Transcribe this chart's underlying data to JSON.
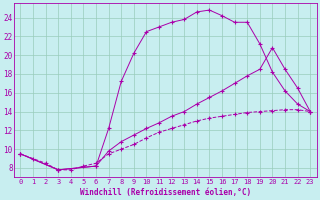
{
  "xlabel": "Windchill (Refroidissement éolien,°C)",
  "bg_color": "#c8eef0",
  "grid_color": "#99ccbb",
  "line_color": "#aa00aa",
  "xlim": [
    -0.5,
    23.5
  ],
  "ylim": [
    7.0,
    25.5
  ],
  "xticks": [
    0,
    1,
    2,
    3,
    4,
    5,
    6,
    7,
    8,
    9,
    10,
    11,
    12,
    13,
    14,
    15,
    16,
    17,
    18,
    19,
    20,
    21,
    22,
    23
  ],
  "yticks": [
    8,
    10,
    12,
    14,
    16,
    18,
    20,
    22,
    24
  ],
  "curve1_x": [
    0,
    1,
    2,
    3,
    4,
    5,
    6,
    7,
    8,
    9,
    10,
    11,
    12,
    13,
    14,
    15,
    16,
    17,
    18,
    19,
    20,
    21,
    22,
    23
  ],
  "curve1_y": [
    9.5,
    9.0,
    8.5,
    7.8,
    7.8,
    8.2,
    8.5,
    9.5,
    10.0,
    10.5,
    11.2,
    11.8,
    12.2,
    12.6,
    13.0,
    13.3,
    13.5,
    13.7,
    13.9,
    14.0,
    14.1,
    14.2,
    14.2,
    14.0
  ],
  "curve2_x": [
    0,
    3,
    6,
    7,
    8,
    9,
    10,
    11,
    12,
    13,
    14,
    15,
    16,
    17,
    18,
    19,
    20,
    21,
    22,
    23
  ],
  "curve2_y": [
    9.5,
    7.8,
    8.2,
    12.2,
    17.2,
    20.2,
    22.5,
    23.0,
    23.5,
    23.8,
    24.6,
    24.8,
    24.2,
    23.5,
    23.5,
    21.2,
    18.2,
    16.2,
    14.8,
    14.0
  ],
  "curve3_x": [
    0,
    3,
    6,
    7,
    8,
    9,
    10,
    11,
    12,
    13,
    14,
    15,
    16,
    17,
    18,
    19,
    20,
    21,
    22,
    23
  ],
  "curve3_y": [
    9.5,
    7.8,
    8.2,
    9.8,
    10.8,
    11.5,
    12.2,
    12.8,
    13.5,
    14.0,
    14.8,
    15.5,
    16.2,
    17.0,
    17.8,
    18.5,
    20.8,
    18.5,
    16.5,
    14.0
  ]
}
